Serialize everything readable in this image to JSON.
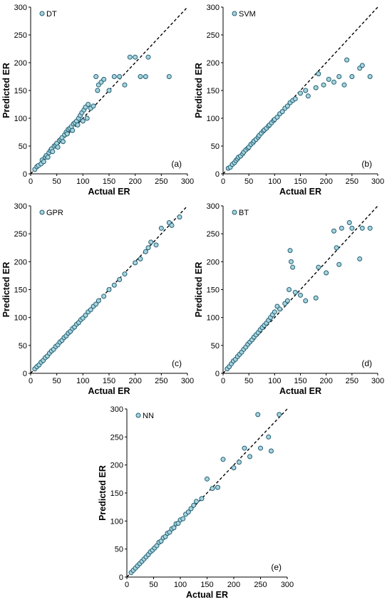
{
  "colors": {
    "marker_fill": "#a9d3dd",
    "marker_stroke": "#1f5f73",
    "axis": "#000000",
    "reference_line": "#000000"
  },
  "chart_data": [
    {
      "type": "scatter",
      "panel_label": "(a)",
      "xlabel": "Actual ER",
      "ylabel": "Predicted ER",
      "xlim": [
        0,
        300
      ],
      "ylim": [
        0,
        300
      ],
      "xticks": [
        "0",
        "50",
        "100",
        "150",
        "200",
        "250",
        "300"
      ],
      "yticks": [
        "0",
        "50",
        "100",
        "150",
        "200",
        "250",
        "300"
      ],
      "legend_position": "top-left",
      "reference_line": "y = x (dashed)",
      "series": [
        {
          "name": "DT",
          "points": [
            [
              8,
              8
            ],
            [
              12,
              13
            ],
            [
              15,
              15
            ],
            [
              20,
              18
            ],
            [
              22,
              25
            ],
            [
              25,
              22
            ],
            [
              28,
              30
            ],
            [
              30,
              33
            ],
            [
              33,
              30
            ],
            [
              35,
              38
            ],
            [
              38,
              42
            ],
            [
              40,
              45
            ],
            [
              42,
              40
            ],
            [
              45,
              50
            ],
            [
              48,
              52
            ],
            [
              50,
              55
            ],
            [
              52,
              48
            ],
            [
              55,
              60
            ],
            [
              58,
              62
            ],
            [
              60,
              65
            ],
            [
              62,
              58
            ],
            [
              65,
              70
            ],
            [
              68,
              75
            ],
            [
              70,
              72
            ],
            [
              72,
              80
            ],
            [
              75,
              82
            ],
            [
              78,
              85
            ],
            [
              80,
              78
            ],
            [
              82,
              90
            ],
            [
              85,
              92
            ],
            [
              88,
              95
            ],
            [
              90,
              88
            ],
            [
              92,
              100
            ],
            [
              95,
              105
            ],
            [
              98,
              110
            ],
            [
              100,
              95
            ],
            [
              102,
              115
            ],
            [
              105,
              120
            ],
            [
              108,
              100
            ],
            [
              110,
              125
            ],
            [
              115,
              118
            ],
            [
              120,
              122
            ],
            [
              125,
              175
            ],
            [
              128,
              150
            ],
            [
              130,
              160
            ],
            [
              135,
              165
            ],
            [
              140,
              170
            ],
            [
              150,
              150
            ],
            [
              160,
              175
            ],
            [
              170,
              175
            ],
            [
              180,
              160
            ],
            [
              190,
              210
            ],
            [
              200,
              210
            ],
            [
              210,
              175
            ],
            [
              220,
              175
            ],
            [
              225,
              210
            ],
            [
              265,
              175
            ]
          ]
        }
      ]
    },
    {
      "type": "scatter",
      "panel_label": "(b)",
      "xlabel": "Actual ER",
      "ylabel": "Predicted ER",
      "xlim": [
        0,
        300
      ],
      "ylim": [
        0,
        300
      ],
      "xticks": [
        "0",
        "50",
        "100",
        "150",
        "200",
        "250",
        "300"
      ],
      "yticks": [
        "0",
        "50",
        "100",
        "150",
        "200",
        "250",
        "300"
      ],
      "legend_position": "top-left",
      "reference_line": "y = x (dashed)",
      "series": [
        {
          "name": "SVM",
          "points": [
            [
              10,
              10
            ],
            [
              14,
              12
            ],
            [
              18,
              17
            ],
            [
              22,
              20
            ],
            [
              25,
              24
            ],
            [
              28,
              27
            ],
            [
              30,
              30
            ],
            [
              34,
              32
            ],
            [
              38,
              36
            ],
            [
              40,
              39
            ],
            [
              44,
              43
            ],
            [
              48,
              46
            ],
            [
              50,
              48
            ],
            [
              54,
              53
            ],
            [
              58,
              56
            ],
            [
              60,
              59
            ],
            [
              64,
              62
            ],
            [
              68,
              66
            ],
            [
              70,
              69
            ],
            [
              74,
              73
            ],
            [
              78,
              77
            ],
            [
              80,
              79
            ],
            [
              84,
              82
            ],
            [
              88,
              86
            ],
            [
              90,
              88
            ],
            [
              94,
              92
            ],
            [
              98,
              96
            ],
            [
              100,
              98
            ],
            [
              105,
              102
            ],
            [
              110,
              108
            ],
            [
              115,
              112
            ],
            [
              120,
              118
            ],
            [
              125,
              122
            ],
            [
              130,
              128
            ],
            [
              135,
              132
            ],
            [
              140,
              135
            ],
            [
              150,
              145
            ],
            [
              160,
              150
            ],
            [
              165,
              140
            ],
            [
              180,
              155
            ],
            [
              185,
              180
            ],
            [
              195,
              160
            ],
            [
              205,
              170
            ],
            [
              215,
              165
            ],
            [
              225,
              175
            ],
            [
              235,
              160
            ],
            [
              240,
              205
            ],
            [
              250,
              175
            ],
            [
              265,
              190
            ],
            [
              270,
              195
            ],
            [
              285,
              175
            ]
          ]
        }
      ]
    },
    {
      "type": "scatter",
      "panel_label": "(c)",
      "xlabel": "Actual ER",
      "ylabel": "Predicted ER",
      "xlim": [
        0,
        300
      ],
      "ylim": [
        0,
        300
      ],
      "xticks": [
        "0",
        "50",
        "100",
        "150",
        "200",
        "250",
        "300"
      ],
      "yticks": [
        "0",
        "50",
        "100",
        "150",
        "200",
        "250",
        "300"
      ],
      "legend_position": "top-left",
      "reference_line": "y = x (dashed)",
      "series": [
        {
          "name": "GPR",
          "points": [
            [
              8,
              8
            ],
            [
              12,
              12
            ],
            [
              16,
              15
            ],
            [
              20,
              20
            ],
            [
              24,
              23
            ],
            [
              28,
              28
            ],
            [
              32,
              31
            ],
            [
              36,
              36
            ],
            [
              40,
              40
            ],
            [
              44,
              43
            ],
            [
              48,
              48
            ],
            [
              52,
              51
            ],
            [
              56,
              56
            ],
            [
              60,
              59
            ],
            [
              64,
              64
            ],
            [
              68,
              67
            ],
            [
              72,
              72
            ],
            [
              76,
              75
            ],
            [
              80,
              80
            ],
            [
              84,
              83
            ],
            [
              88,
              88
            ],
            [
              92,
              91
            ],
            [
              96,
              96
            ],
            [
              100,
              99
            ],
            [
              105,
              104
            ],
            [
              110,
              110
            ],
            [
              115,
              114
            ],
            [
              120,
              120
            ],
            [
              125,
              124
            ],
            [
              130,
              130
            ],
            [
              140,
              138
            ],
            [
              150,
              150
            ],
            [
              160,
              158
            ],
            [
              170,
              168
            ],
            [
              180,
              178
            ],
            [
              200,
              198
            ],
            [
              210,
              205
            ],
            [
              220,
              218
            ],
            [
              225,
              225
            ],
            [
              230,
              235
            ],
            [
              240,
              230
            ],
            [
              250,
              260
            ],
            [
              265,
              270
            ],
            [
              270,
              265
            ],
            [
              285,
              280
            ]
          ]
        }
      ]
    },
    {
      "type": "scatter",
      "panel_label": "(d)",
      "xlabel": "Actual ER",
      "ylabel": "Predicted ER",
      "xlim": [
        0,
        300
      ],
      "ylim": [
        0,
        300
      ],
      "xticks": [
        "0",
        "50",
        "100",
        "150",
        "200",
        "250",
        "300"
      ],
      "yticks": [
        "0",
        "50",
        "100",
        "150",
        "200",
        "250",
        "300"
      ],
      "legend_position": "top-left",
      "reference_line": "y = x (dashed)",
      "series": [
        {
          "name": "BT",
          "points": [
            [
              8,
              8
            ],
            [
              12,
              12
            ],
            [
              16,
              17
            ],
            [
              20,
              22
            ],
            [
              24,
              25
            ],
            [
              28,
              30
            ],
            [
              32,
              34
            ],
            [
              36,
              38
            ],
            [
              40,
              43
            ],
            [
              44,
              47
            ],
            [
              48,
              52
            ],
            [
              52,
              56
            ],
            [
              56,
              60
            ],
            [
              60,
              65
            ],
            [
              64,
              69
            ],
            [
              68,
              73
            ],
            [
              72,
              78
            ],
            [
              76,
              82
            ],
            [
              80,
              86
            ],
            [
              84,
              90
            ],
            [
              88,
              95
            ],
            [
              92,
              100
            ],
            [
              96,
              105
            ],
            [
              100,
              110
            ],
            [
              105,
              120
            ],
            [
              110,
              115
            ],
            [
              120,
              125
            ],
            [
              125,
              130
            ],
            [
              128,
              150
            ],
            [
              130,
              220
            ],
            [
              132,
              200
            ],
            [
              135,
              190
            ],
            [
              140,
              145
            ],
            [
              150,
              140
            ],
            [
              160,
              130
            ],
            [
              180,
              135
            ],
            [
              185,
              190
            ],
            [
              200,
              180
            ],
            [
              215,
              255
            ],
            [
              220,
              225
            ],
            [
              225,
              195
            ],
            [
              230,
              260
            ],
            [
              245,
              270
            ],
            [
              250,
              260
            ],
            [
              265,
              205
            ],
            [
              270,
              260
            ],
            [
              285,
              260
            ]
          ]
        }
      ]
    },
    {
      "type": "scatter",
      "panel_label": "(e)",
      "xlabel": "Actual ER",
      "ylabel": "Predicted ER",
      "xlim": [
        0,
        300
      ],
      "ylim": [
        0,
        300
      ],
      "xticks": [
        "0",
        "50",
        "100",
        "150",
        "200",
        "250",
        "300"
      ],
      "yticks": [
        "0",
        "50",
        "100",
        "150",
        "200",
        "250",
        "300"
      ],
      "legend_position": "top-left",
      "reference_line": "y = x (dashed)",
      "series": [
        {
          "name": "NN",
          "points": [
            [
              8,
              8
            ],
            [
              12,
              12
            ],
            [
              16,
              16
            ],
            [
              20,
              20
            ],
            [
              24,
              24
            ],
            [
              28,
              28
            ],
            [
              32,
              32
            ],
            [
              36,
              36
            ],
            [
              40,
              40
            ],
            [
              44,
              45
            ],
            [
              48,
              48
            ],
            [
              52,
              52
            ],
            [
              56,
              56
            ],
            [
              60,
              62
            ],
            [
              64,
              64
            ],
            [
              68,
              70
            ],
            [
              72,
              72
            ],
            [
              76,
              78
            ],
            [
              80,
              80
            ],
            [
              84,
              86
            ],
            [
              88,
              88
            ],
            [
              92,
              95
            ],
            [
              96,
              96
            ],
            [
              100,
              102
            ],
            [
              105,
              104
            ],
            [
              110,
              112
            ],
            [
              115,
              116
            ],
            [
              120,
              122
            ],
            [
              125,
              128
            ],
            [
              130,
              135
            ],
            [
              140,
              140
            ],
            [
              150,
              175
            ],
            [
              160,
              158
            ],
            [
              170,
              160
            ],
            [
              180,
              210
            ],
            [
              200,
              195
            ],
            [
              210,
              205
            ],
            [
              220,
              230
            ],
            [
              230,
              215
            ],
            [
              245,
              290
            ],
            [
              250,
              230
            ],
            [
              265,
              250
            ],
            [
              270,
              225
            ],
            [
              285,
              290
            ]
          ]
        }
      ]
    }
  ]
}
